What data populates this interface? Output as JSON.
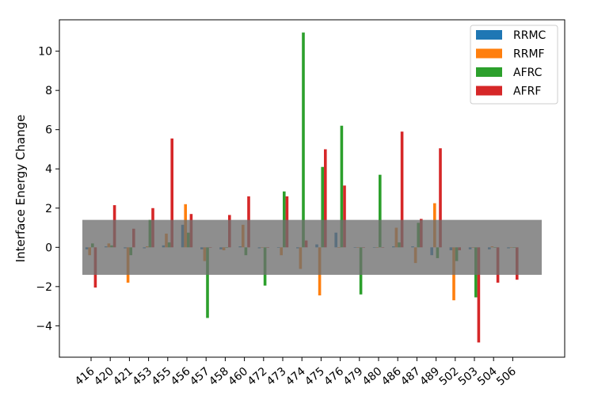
{
  "chart_data": {
    "type": "bar",
    "title": "",
    "xlabel": "",
    "ylabel": "Interface Energy Change",
    "ylim": [
      -5.6,
      11.6
    ],
    "yticks": [
      -4,
      -2,
      0,
      2,
      4,
      6,
      8,
      10
    ],
    "grid": false,
    "legend_position": "top-right",
    "categories": [
      "416",
      "420",
      "421",
      "453",
      "455",
      "456",
      "457",
      "458",
      "460",
      "472",
      "473",
      "474",
      "475",
      "476",
      "479",
      "480",
      "486",
      "487",
      "489",
      "502",
      "503",
      "504",
      "506"
    ],
    "series": [
      {
        "name": "RRMC",
        "color": "#1f77b4",
        "values": [
          -0.1,
          0.05,
          -0.05,
          -0.05,
          0.1,
          1.15,
          -0.1,
          -0.1,
          0.05,
          -0.05,
          0.0,
          -0.05,
          0.15,
          0.75,
          0.0,
          0.0,
          0.05,
          0.05,
          -0.4,
          -0.15,
          -0.1,
          -0.1,
          -0.05
        ]
      },
      {
        "name": "RRMF",
        "color": "#ff7f0e",
        "values": [
          -0.4,
          0.2,
          -1.8,
          0.05,
          0.7,
          2.2,
          -0.7,
          -0.15,
          1.15,
          0.0,
          -0.4,
          -1.1,
          -2.45,
          0.0,
          0.0,
          0.0,
          1.0,
          -0.8,
          2.25,
          -2.7,
          0.0,
          0.05,
          0.0
        ]
      },
      {
        "name": "AFRC",
        "color": "#2ca02c",
        "values": [
          0.2,
          0.1,
          -0.4,
          1.4,
          0.25,
          0.75,
          -3.6,
          0.0,
          -0.4,
          -1.95,
          2.85,
          10.95,
          4.1,
          6.2,
          -2.4,
          3.7,
          0.25,
          1.25,
          -0.55,
          -0.7,
          -2.55,
          0.0,
          0.0
        ]
      },
      {
        "name": "AFRF",
        "color": "#d62728",
        "values": [
          -2.05,
          2.15,
          0.95,
          2.0,
          5.55,
          1.7,
          0.0,
          1.65,
          2.6,
          0.0,
          2.6,
          0.35,
          5.0,
          3.15,
          0.0,
          0.0,
          5.9,
          1.45,
          5.05,
          -0.15,
          -4.85,
          -1.8,
          -1.65
        ]
      }
    ],
    "band": {
      "lower": -1.4,
      "upper": 1.4,
      "color": "#6e6e6e"
    }
  }
}
